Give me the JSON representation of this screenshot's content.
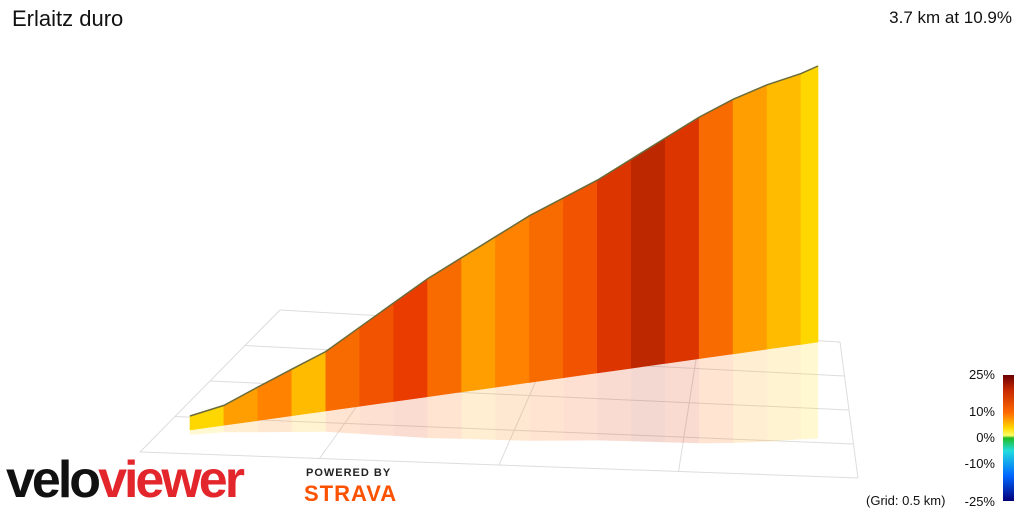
{
  "header": {
    "title": "Erlaitz duro",
    "summary": "3.7 km at 10.9%"
  },
  "legend": {
    "ticks": [
      "25%",
      "10%",
      "0%",
      "-10%",
      "-25%"
    ],
    "grid_note": "(Grid: 0.5 km)"
  },
  "branding": {
    "logo_part1": "velo",
    "logo_part2": "viewer",
    "powered_by": "POWERED BY",
    "strava": "STRAVA"
  },
  "chart_data": {
    "type": "area",
    "title": "Erlaitz duro",
    "subtitle": "3.7 km at 10.9%",
    "x_unit": "km",
    "y_unit": "m",
    "color_scale": {
      "min": -25,
      "max": 25,
      "unit": "%"
    },
    "x": [
      0,
      0.2,
      0.4,
      0.6,
      0.8,
      1.0,
      1.2,
      1.4,
      1.6,
      1.8,
      2.0,
      2.2,
      2.4,
      2.6,
      2.8,
      3.0,
      3.2,
      3.4,
      3.6,
      3.7
    ],
    "elevation": [
      0,
      9,
      30,
      50,
      70,
      100,
      130,
      160,
      185,
      210,
      235,
      255,
      275,
      300,
      325,
      350,
      370,
      385,
      395,
      403
    ],
    "gradient": [
      8,
      10,
      11,
      9,
      12,
      13,
      14,
      12,
      10,
      11,
      12,
      13,
      15,
      17,
      15,
      12,
      10,
      9,
      8,
      7
    ],
    "grid_km": 0.5
  }
}
